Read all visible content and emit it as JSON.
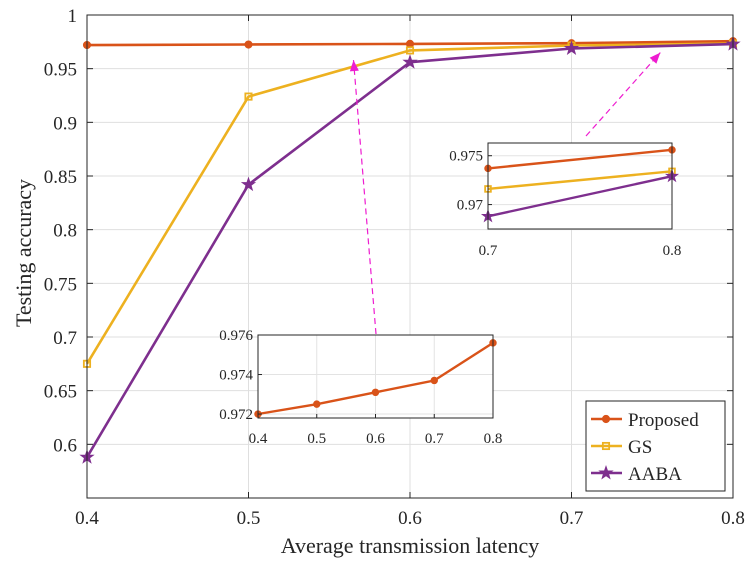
{
  "chart_data": {
    "type": "line",
    "title": "",
    "xlabel": "Average transmission latency",
    "ylabel": "Testing accuracy",
    "xlim": [
      0.4,
      0.8
    ],
    "ylim": [
      0.55,
      1.0
    ],
    "grid": true,
    "legend_position": "bottom-right",
    "x": [
      0.4,
      0.5,
      0.6,
      0.7,
      0.8
    ],
    "x_ticks": [
      "0.4",
      "0.5",
      "0.6",
      "0.7",
      "0.8"
    ],
    "y_ticks": [
      "0.6",
      "0.65",
      "0.7",
      "0.75",
      "0.8",
      "0.85",
      "0.9",
      "0.95",
      "1"
    ],
    "series": [
      {
        "name": "Proposed",
        "color": "#D95319",
        "marker": "circle",
        "values": [
          0.972,
          0.9725,
          0.9731,
          0.9737,
          0.9756
        ]
      },
      {
        "name": "GS",
        "color": "#EDB120",
        "marker": "square",
        "values": [
          0.675,
          0.924,
          0.967,
          0.9716,
          0.9734
        ]
      },
      {
        "name": "AABA",
        "color": "#7E2F8E",
        "marker": "star",
        "values": [
          0.588,
          0.842,
          0.956,
          0.9688,
          0.9729
        ]
      }
    ],
    "insets": [
      {
        "name": "zoom-proposed",
        "xlim": [
          0.4,
          0.8
        ],
        "ylim": [
          0.9718,
          0.976
        ],
        "x_ticks": [
          "0.4",
          "0.5",
          "0.6",
          "0.7",
          "0.8"
        ],
        "y_ticks": [
          "0.972",
          "0.974",
          "0.976"
        ],
        "series": [
          "Proposed"
        ],
        "points_to": {
          "x": 0.565,
          "y": 0.958
        }
      },
      {
        "name": "zoom-high-latency",
        "xlim": [
          0.7,
          0.8
        ],
        "ylim": [
          0.9675,
          0.9763
        ],
        "x_ticks": [
          "0.7",
          "0.8"
        ],
        "y_ticks": [
          "0.97",
          "0.975"
        ],
        "series": [
          "Proposed",
          "GS",
          "AABA"
        ],
        "points_to": {
          "x": 0.755,
          "y": 0.965
        }
      }
    ]
  }
}
